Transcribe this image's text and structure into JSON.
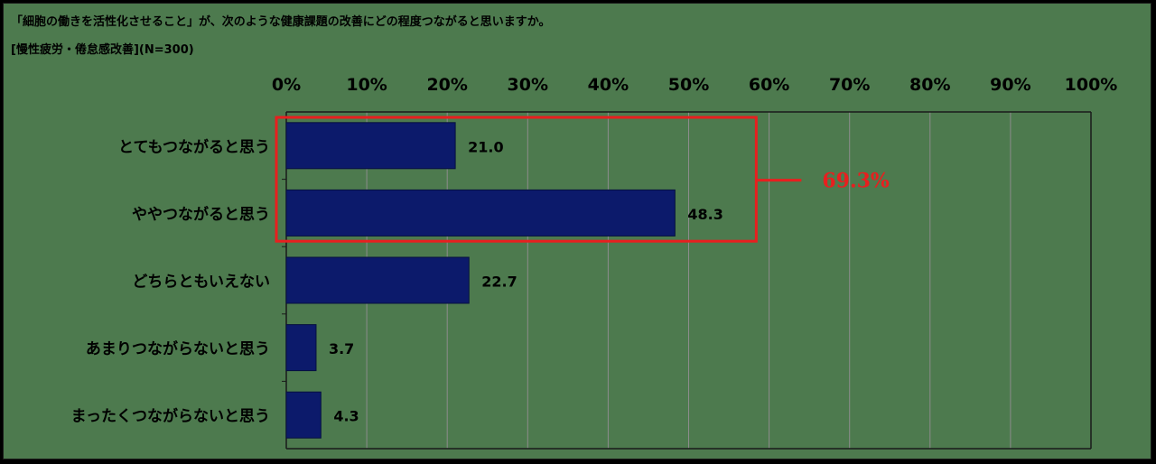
{
  "header": {
    "title": "「細胞の働きを活性化させること」が、次のような健康課題の改善にどの程度つながると思いますか。",
    "subtitle": "[慢性疲労・倦怠感改善](N=300)"
  },
  "colors": {
    "background": "#4d7a4e",
    "bar": "#0c1a6b",
    "highlight": "#e81f1f",
    "text": "#000000"
  },
  "chart_data": {
    "type": "bar",
    "orientation": "horizontal",
    "categories": [
      "とてもつながると思う",
      "ややつながると思う",
      "どちらともいえない",
      "あまりつながらないと思う",
      "まったくつながらないと思う"
    ],
    "values": [
      21.0,
      48.3,
      22.7,
      3.7,
      4.3
    ],
    "value_labels": [
      "21.0",
      "48.3",
      "22.7",
      "3.7",
      "4.3"
    ],
    "ticks": [
      "0%",
      "10%",
      "20%",
      "30%",
      "40%",
      "50%",
      "60%",
      "70%",
      "80%",
      "90%",
      "100%"
    ],
    "xlim": [
      0,
      100
    ],
    "grid": true,
    "axis_position": "top",
    "annotation": {
      "label": "69.3%",
      "groups": [
        0,
        1
      ]
    }
  }
}
